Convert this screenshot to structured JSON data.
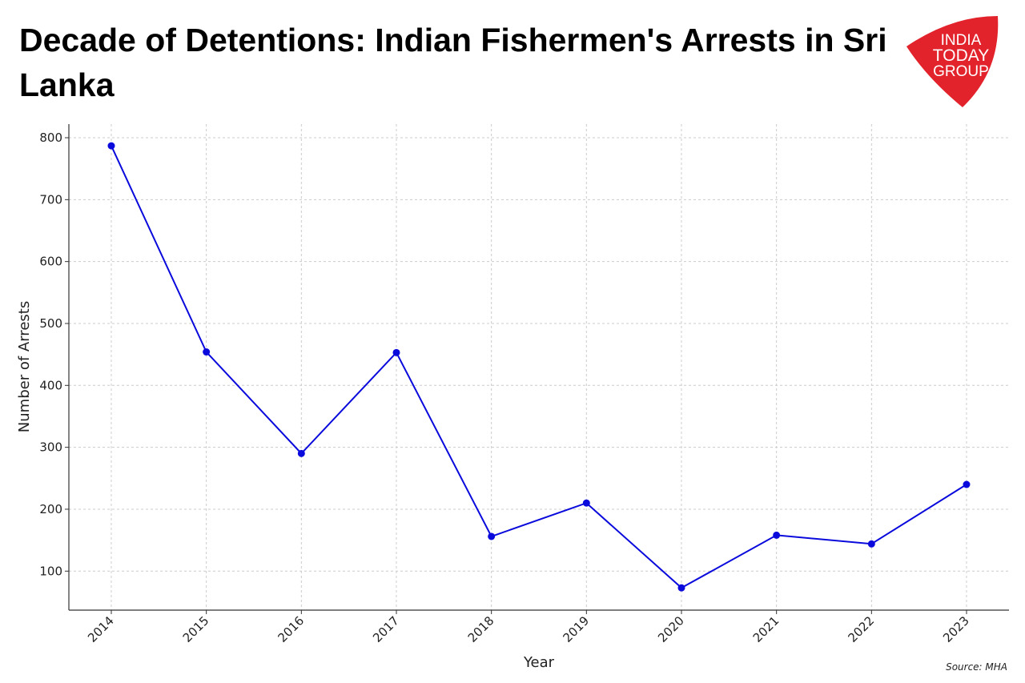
{
  "title": "Decade of Detentions: Indian Fishermen's Arrests in Sri Lanka",
  "logo": {
    "lines": [
      "INDIA",
      "TODAY",
      "GROUP"
    ],
    "color": "#e3232c"
  },
  "source": "Source: MHA",
  "chart_data": {
    "type": "line",
    "title": "Decade of Detentions: Indian Fishermen's Arrests in Sri Lanka",
    "xlabel": "Year",
    "ylabel": "Number of Arrests",
    "categories": [
      "2014",
      "2015",
      "2016",
      "2017",
      "2018",
      "2019",
      "2020",
      "2021",
      "2022",
      "2023"
    ],
    "series": [
      {
        "name": "Arrests",
        "color": "#0a0adc",
        "values": [
          787,
          454,
          290,
          453,
          156,
          210,
          73,
          158,
          144,
          240
        ]
      }
    ],
    "yticks": [
      100,
      200,
      300,
      400,
      500,
      600,
      700,
      800
    ],
    "ylim": [
      37,
      822
    ],
    "grid": true
  }
}
